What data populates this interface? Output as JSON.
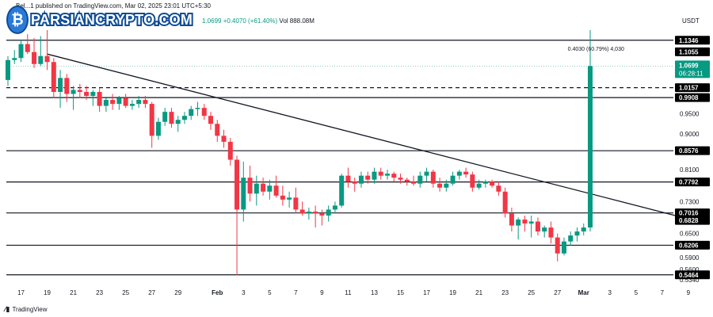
{
  "header": {
    "published": "Bel...1 published on TradingView.com, Mar 02, 2025 23:01 UTC+5:30",
    "ohlc_change": "1.0699  +0.4070 (+61.40%)",
    "volume": "Vol 888.08M",
    "currency": "USDT"
  },
  "watermark": {
    "brand": "PARSIANCRYPTO.COM"
  },
  "footer": {
    "platform": "TradingView"
  },
  "colors": {
    "up": "#089981",
    "down": "#f23645",
    "line": "#131722",
    "bg": "#ffffff"
  },
  "chart_data": {
    "type": "candlestick",
    "ylim": [
      0.534,
      1.16
    ],
    "xlim": [
      0,
      51
    ],
    "price_ticks": [
      "0.9500",
      "0.9000",
      "0.8100",
      "0.7300",
      "0.6500",
      "0.5900",
      "0.5600",
      "0.5340"
    ],
    "x_ticks": [
      {
        "label": "17",
        "x": 1
      },
      {
        "label": "19",
        "x": 3
      },
      {
        "label": "21",
        "x": 5
      },
      {
        "label": "23",
        "x": 7
      },
      {
        "label": "25",
        "x": 9
      },
      {
        "label": "27",
        "x": 11
      },
      {
        "label": "29",
        "x": 13
      },
      {
        "label": "Feb",
        "x": 16
      },
      {
        "label": "3",
        "x": 18
      },
      {
        "label": "5",
        "x": 20
      },
      {
        "label": "7",
        "x": 22
      },
      {
        "label": "9",
        "x": 24
      },
      {
        "label": "11",
        "x": 26
      },
      {
        "label": "13",
        "x": 28
      },
      {
        "label": "15",
        "x": 30
      },
      {
        "label": "17",
        "x": 32
      },
      {
        "label": "19",
        "x": 34
      },
      {
        "label": "21",
        "x": 36
      },
      {
        "label": "23",
        "x": 38
      },
      {
        "label": "25",
        "x": 40
      },
      {
        "label": "27",
        "x": 42
      },
      {
        "label": "Mar",
        "x": 44
      },
      {
        "label": "3",
        "x": 46
      },
      {
        "label": "5",
        "x": 48
      },
      {
        "label": "7",
        "x": 50
      },
      {
        "label": "9",
        "x": 52
      }
    ],
    "levels": [
      {
        "label": "1.1346",
        "value": 1.1346,
        "style": "solid"
      },
      {
        "label": "1.1055",
        "value": 1.1055,
        "style": "none"
      },
      {
        "label": "1.0157",
        "value": 1.0157,
        "style": "dashed"
      },
      {
        "label": "0.9908",
        "value": 0.9908,
        "style": "solid"
      },
      {
        "label": "0.8576",
        "value": 0.8576,
        "style": "solid"
      },
      {
        "label": "0.7792",
        "value": 0.7792,
        "style": "solid"
      },
      {
        "label": "0.7016",
        "value": 0.7016,
        "style": "solid"
      },
      {
        "label": "0.6828",
        "value": 0.6828,
        "style": "none"
      },
      {
        "label": "0.6206",
        "value": 0.6206,
        "style": "solid"
      },
      {
        "label": "0.5464",
        "value": 0.5464,
        "style": "solid"
      }
    ],
    "current_price": {
      "value": 1.0699,
      "label": "1.0699",
      "countdown": "06:28:11"
    },
    "trendline": {
      "from": [
        3,
        1.1
      ],
      "to": [
        51,
        0.695
      ]
    },
    "annotation": {
      "text": "0.4030 (60.79%) 4,030",
      "x": 44.6,
      "y": 1.108
    },
    "candles": [
      {
        "x": 0,
        "o": 1.035,
        "h": 1.095,
        "l": 1.02,
        "c": 1.085
      },
      {
        "x": 0.5,
        "o": 1.085,
        "h": 1.11,
        "l": 1.075,
        "c": 1.09
      },
      {
        "x": 1,
        "o": 1.09,
        "h": 1.135,
        "l": 1.08,
        "c": 1.125
      },
      {
        "x": 1.5,
        "o": 1.125,
        "h": 1.15,
        "l": 1.1,
        "c": 1.105
      },
      {
        "x": 2,
        "o": 1.105,
        "h": 1.14,
        "l": 1.065,
        "c": 1.075
      },
      {
        "x": 2.5,
        "o": 1.075,
        "h": 1.145,
        "l": 1.07,
        "c": 1.095
      },
      {
        "x": 3,
        "o": 1.095,
        "h": 1.16,
        "l": 1.06,
        "c": 1.08
      },
      {
        "x": 3.5,
        "o": 1.08,
        "h": 1.09,
        "l": 0.99,
        "c": 1.005
      },
      {
        "x": 4,
        "o": 1.005,
        "h": 1.06,
        "l": 0.965,
        "c": 1.04
      },
      {
        "x": 4.5,
        "o": 1.04,
        "h": 1.05,
        "l": 0.98,
        "c": 1.0
      },
      {
        "x": 5,
        "o": 1.0,
        "h": 1.02,
        "l": 0.96,
        "c": 1.01
      },
      {
        "x": 5.5,
        "o": 1.01,
        "h": 1.025,
        "l": 0.99,
        "c": 1.005
      },
      {
        "x": 6,
        "o": 1.005,
        "h": 1.02,
        "l": 0.985,
        "c": 0.995
      },
      {
        "x": 6.5,
        "o": 0.995,
        "h": 1.01,
        "l": 0.97,
        "c": 1.005
      },
      {
        "x": 7,
        "o": 1.005,
        "h": 1.015,
        "l": 0.955,
        "c": 0.97
      },
      {
        "x": 7.5,
        "o": 0.97,
        "h": 0.99,
        "l": 0.955,
        "c": 0.985
      },
      {
        "x": 8,
        "o": 0.985,
        "h": 1.0,
        "l": 0.96,
        "c": 0.975
      },
      {
        "x": 8.5,
        "o": 0.975,
        "h": 0.995,
        "l": 0.96,
        "c": 0.99
      },
      {
        "x": 9,
        "o": 0.99,
        "h": 1.0,
        "l": 0.965,
        "c": 0.97
      },
      {
        "x": 9.5,
        "o": 0.97,
        "h": 0.985,
        "l": 0.96,
        "c": 0.975
      },
      {
        "x": 10,
        "o": 0.975,
        "h": 0.995,
        "l": 0.965,
        "c": 0.985
      },
      {
        "x": 10.5,
        "o": 0.985,
        "h": 0.995,
        "l": 0.965,
        "c": 0.975
      },
      {
        "x": 11,
        "o": 0.975,
        "h": 0.98,
        "l": 0.865,
        "c": 0.895
      },
      {
        "x": 11.5,
        "o": 0.895,
        "h": 0.94,
        "l": 0.885,
        "c": 0.93
      },
      {
        "x": 12,
        "o": 0.93,
        "h": 0.965,
        "l": 0.92,
        "c": 0.955
      },
      {
        "x": 12.5,
        "o": 0.955,
        "h": 0.965,
        "l": 0.915,
        "c": 0.925
      },
      {
        "x": 13,
        "o": 0.925,
        "h": 0.945,
        "l": 0.905,
        "c": 0.935
      },
      {
        "x": 13.5,
        "o": 0.935,
        "h": 0.955,
        "l": 0.925,
        "c": 0.945
      },
      {
        "x": 14,
        "o": 0.945,
        "h": 0.97,
        "l": 0.935,
        "c": 0.962
      },
      {
        "x": 14.5,
        "o": 0.962,
        "h": 0.98,
        "l": 0.945,
        "c": 0.965
      },
      {
        "x": 15,
        "o": 0.965,
        "h": 0.975,
        "l": 0.935,
        "c": 0.945
      },
      {
        "x": 15.5,
        "o": 0.945,
        "h": 0.955,
        "l": 0.91,
        "c": 0.925
      },
      {
        "x": 16,
        "o": 0.925,
        "h": 0.935,
        "l": 0.88,
        "c": 0.895
      },
      {
        "x": 16.5,
        "o": 0.895,
        "h": 0.91,
        "l": 0.865,
        "c": 0.88
      },
      {
        "x": 17,
        "o": 0.88,
        "h": 0.89,
        "l": 0.82,
        "c": 0.835
      },
      {
        "x": 17.5,
        "o": 0.835,
        "h": 0.845,
        "l": 0.545,
        "c": 0.71
      },
      {
        "x": 18,
        "o": 0.71,
        "h": 0.83,
        "l": 0.68,
        "c": 0.79
      },
      {
        "x": 18.5,
        "o": 0.79,
        "h": 0.82,
        "l": 0.73,
        "c": 0.75
      },
      {
        "x": 19,
        "o": 0.75,
        "h": 0.795,
        "l": 0.72,
        "c": 0.775
      },
      {
        "x": 19.5,
        "o": 0.775,
        "h": 0.79,
        "l": 0.745,
        "c": 0.755
      },
      {
        "x": 20,
        "o": 0.755,
        "h": 0.785,
        "l": 0.735,
        "c": 0.77
      },
      {
        "x": 20.5,
        "o": 0.77,
        "h": 0.795,
        "l": 0.74,
        "c": 0.745
      },
      {
        "x": 21,
        "o": 0.745,
        "h": 0.77,
        "l": 0.72,
        "c": 0.735
      },
      {
        "x": 21.5,
        "o": 0.735,
        "h": 0.755,
        "l": 0.715,
        "c": 0.74
      },
      {
        "x": 22,
        "o": 0.74,
        "h": 0.765,
        "l": 0.7,
        "c": 0.71
      },
      {
        "x": 22.5,
        "o": 0.71,
        "h": 0.73,
        "l": 0.695,
        "c": 0.7
      },
      {
        "x": 23,
        "o": 0.7,
        "h": 0.715,
        "l": 0.685,
        "c": 0.705
      },
      {
        "x": 23.5,
        "o": 0.705,
        "h": 0.72,
        "l": 0.665,
        "c": 0.7
      },
      {
        "x": 24,
        "o": 0.7,
        "h": 0.71,
        "l": 0.67,
        "c": 0.695
      },
      {
        "x": 24.5,
        "o": 0.695,
        "h": 0.72,
        "l": 0.68,
        "c": 0.71
      },
      {
        "x": 25,
        "o": 0.71,
        "h": 0.73,
        "l": 0.7,
        "c": 0.72
      },
      {
        "x": 25.5,
        "o": 0.72,
        "h": 0.8,
        "l": 0.715,
        "c": 0.795
      },
      {
        "x": 26,
        "o": 0.795,
        "h": 0.815,
        "l": 0.765,
        "c": 0.78
      },
      {
        "x": 26.5,
        "o": 0.78,
        "h": 0.79,
        "l": 0.755,
        "c": 0.775
      },
      {
        "x": 27,
        "o": 0.775,
        "h": 0.805,
        "l": 0.765,
        "c": 0.795
      },
      {
        "x": 27.5,
        "o": 0.795,
        "h": 0.805,
        "l": 0.775,
        "c": 0.785
      },
      {
        "x": 28,
        "o": 0.785,
        "h": 0.815,
        "l": 0.775,
        "c": 0.805
      },
      {
        "x": 28.5,
        "o": 0.805,
        "h": 0.815,
        "l": 0.785,
        "c": 0.795
      },
      {
        "x": 29,
        "o": 0.795,
        "h": 0.81,
        "l": 0.785,
        "c": 0.8
      },
      {
        "x": 29.5,
        "o": 0.8,
        "h": 0.805,
        "l": 0.78,
        "c": 0.79
      },
      {
        "x": 30,
        "o": 0.79,
        "h": 0.8,
        "l": 0.775,
        "c": 0.785
      },
      {
        "x": 30.5,
        "o": 0.785,
        "h": 0.79,
        "l": 0.77,
        "c": 0.78
      },
      {
        "x": 31,
        "o": 0.78,
        "h": 0.795,
        "l": 0.77,
        "c": 0.775
      },
      {
        "x": 31.5,
        "o": 0.775,
        "h": 0.805,
        "l": 0.765,
        "c": 0.795
      },
      {
        "x": 32,
        "o": 0.795,
        "h": 0.815,
        "l": 0.78,
        "c": 0.805
      },
      {
        "x": 32.5,
        "o": 0.805,
        "h": 0.81,
        "l": 0.765,
        "c": 0.775
      },
      {
        "x": 33,
        "o": 0.775,
        "h": 0.79,
        "l": 0.755,
        "c": 0.765
      },
      {
        "x": 33.5,
        "o": 0.765,
        "h": 0.785,
        "l": 0.755,
        "c": 0.775
      },
      {
        "x": 34,
        "o": 0.775,
        "h": 0.805,
        "l": 0.77,
        "c": 0.795
      },
      {
        "x": 34.5,
        "o": 0.795,
        "h": 0.81,
        "l": 0.785,
        "c": 0.805
      },
      {
        "x": 35,
        "o": 0.805,
        "h": 0.815,
        "l": 0.79,
        "c": 0.798
      },
      {
        "x": 35.5,
        "o": 0.798,
        "h": 0.805,
        "l": 0.755,
        "c": 0.765
      },
      {
        "x": 36,
        "o": 0.765,
        "h": 0.785,
        "l": 0.76,
        "c": 0.775
      },
      {
        "x": 36.5,
        "o": 0.775,
        "h": 0.785,
        "l": 0.765,
        "c": 0.78
      },
      {
        "x": 37,
        "o": 0.78,
        "h": 0.785,
        "l": 0.765,
        "c": 0.77
      },
      {
        "x": 37.5,
        "o": 0.77,
        "h": 0.78,
        "l": 0.745,
        "c": 0.755
      },
      {
        "x": 38,
        "o": 0.755,
        "h": 0.765,
        "l": 0.69,
        "c": 0.7
      },
      {
        "x": 38.5,
        "o": 0.7,
        "h": 0.715,
        "l": 0.655,
        "c": 0.67
      },
      {
        "x": 39,
        "o": 0.67,
        "h": 0.69,
        "l": 0.635,
        "c": 0.685
      },
      {
        "x": 39.5,
        "o": 0.685,
        "h": 0.695,
        "l": 0.655,
        "c": 0.675
      },
      {
        "x": 40,
        "o": 0.675,
        "h": 0.695,
        "l": 0.64,
        "c": 0.68
      },
      {
        "x": 40.5,
        "o": 0.68,
        "h": 0.69,
        "l": 0.645,
        "c": 0.655
      },
      {
        "x": 41,
        "o": 0.655,
        "h": 0.67,
        "l": 0.64,
        "c": 0.665
      },
      {
        "x": 41.5,
        "o": 0.665,
        "h": 0.68,
        "l": 0.625,
        "c": 0.64
      },
      {
        "x": 42,
        "o": 0.64,
        "h": 0.65,
        "l": 0.58,
        "c": 0.6
      },
      {
        "x": 42.5,
        "o": 0.6,
        "h": 0.64,
        "l": 0.595,
        "c": 0.63
      },
      {
        "x": 43,
        "o": 0.63,
        "h": 0.655,
        "l": 0.62,
        "c": 0.645
      },
      {
        "x": 43.5,
        "o": 0.645,
        "h": 0.665,
        "l": 0.63,
        "c": 0.655
      },
      {
        "x": 44,
        "o": 0.655,
        "h": 0.675,
        "l": 0.645,
        "c": 0.665
      },
      {
        "x": 44.5,
        "o": 0.665,
        "h": 1.16,
        "l": 0.655,
        "c": 1.0699
      }
    ]
  }
}
